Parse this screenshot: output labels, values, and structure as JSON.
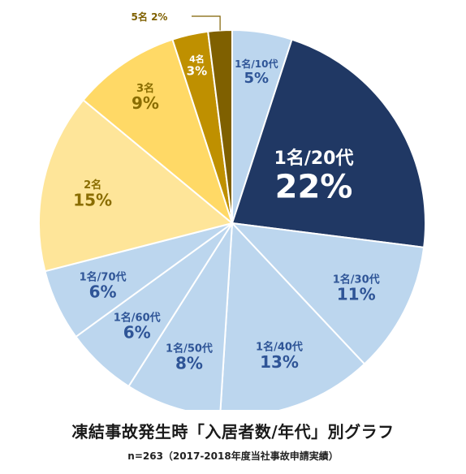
{
  "chart_data": {
    "type": "pie",
    "title": "凍結事故発生時「入居者数/年代」別グラフ",
    "subtitle": "n=263（2017-2018年度当社事故申請実績）",
    "slices": [
      {
        "label": "1名/10代",
        "value": 5,
        "value_label": "5%",
        "color": "#bcd6ee",
        "text_color": "#2f5597"
      },
      {
        "label": "1名/20代",
        "value": 22,
        "value_label": "22%",
        "color": "#203864",
        "text_color": "#ffffff"
      },
      {
        "label": "1名/30代",
        "value": 11,
        "value_label": "11%",
        "color": "#bcd6ee",
        "text_color": "#2f5597"
      },
      {
        "label": "1名/40代",
        "value": 13,
        "value_label": "13%",
        "color": "#bcd6ee",
        "text_color": "#2f5597"
      },
      {
        "label": "1名/50代",
        "value": 8,
        "value_label": "8%",
        "color": "#bcd6ee",
        "text_color": "#2f5597"
      },
      {
        "label": "1名/60代",
        "value": 6,
        "value_label": "6%",
        "color": "#bcd6ee",
        "text_color": "#2f5597"
      },
      {
        "label": "1名/70代",
        "value": 6,
        "value_label": "6%",
        "color": "#bcd6ee",
        "text_color": "#2f5597"
      },
      {
        "label": "2名",
        "value": 15,
        "value_label": "15%",
        "color": "#fee599",
        "text_color": "#8a6d00"
      },
      {
        "label": "3名",
        "value": 9,
        "value_label": "9%",
        "color": "#ffd966",
        "text_color": "#8a6d00"
      },
      {
        "label": "4名",
        "value": 3,
        "value_label": "3%",
        "color": "#bf9000",
        "text_color": "#ffffff"
      },
      {
        "label": "5名",
        "value": 2,
        "value_label": "2%",
        "color": "#7f6000",
        "text_color": "#7f6000"
      }
    ]
  }
}
